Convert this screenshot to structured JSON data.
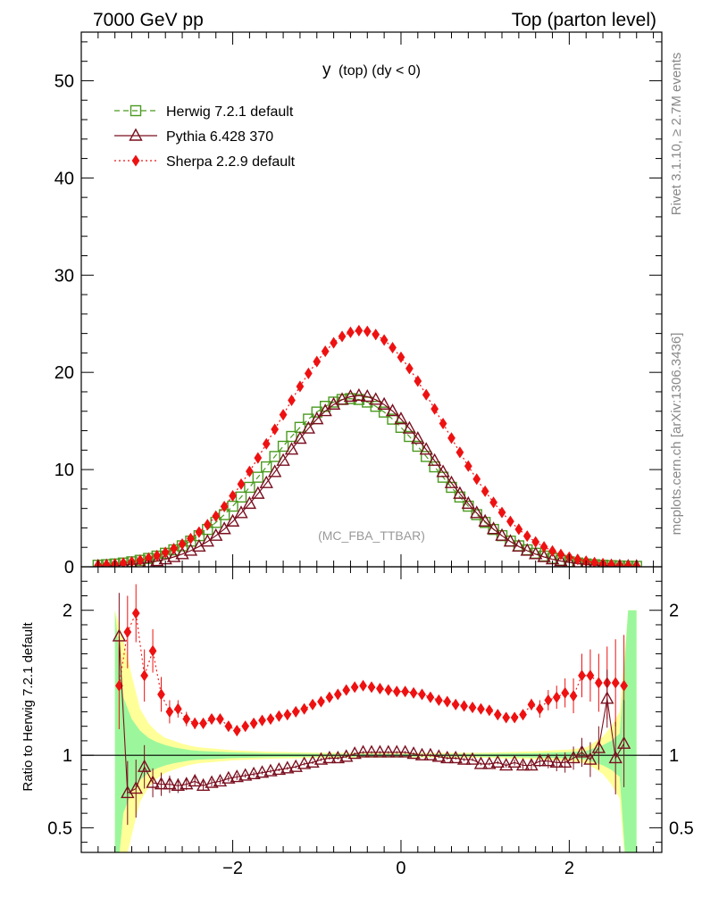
{
  "header": {
    "left": "7000 GeV pp",
    "right": "Top (parton level)"
  },
  "side": {
    "rivet": "Rivet 3.1.10, ≥ 2.7M events",
    "mcplots": "mcplots.cern.ch [arXiv:1306.3436]"
  },
  "chart_data": [
    {
      "type": "line",
      "panel": "main",
      "title_main": "y",
      "title_rest": "(top) (dy < 0)",
      "watermark": "(MC_FBA_TTBAR)",
      "xlim": [
        -3.8,
        3.1
      ],
      "ylim": [
        0,
        55
      ],
      "yticks": [
        0,
        10,
        20,
        30,
        40,
        50
      ],
      "ytick_labels": [
        "0",
        "10",
        "20",
        "30",
        "40",
        "50"
      ],
      "legend_position": "top-left",
      "sherpa_offset": -0.48,
      "pythia_offset": -0.5,
      "series": [
        {
          "name": "Herwig 7.2.1 default",
          "color": "#4a9a1f",
          "style": "dashed",
          "marker": "square",
          "curve": "gauss",
          "peak": 17.3,
          "mean": -0.6,
          "sigma": 0.98,
          "x_start": -3.6,
          "x_end": 2.8,
          "bin_width": 0.1
        },
        {
          "name": "Pythia 6.428 370",
          "color": "#7a0f1f",
          "style": "solid",
          "marker": "triangle",
          "curve": "gauss",
          "peak": 17.6,
          "mean": -0.5,
          "sigma": 0.92,
          "x_start": -3.6,
          "x_end": 2.8,
          "bin_width": 0.1
        },
        {
          "name": "Sherpa 2.2.9 default",
          "color": "#ee1111",
          "style": "dotted",
          "marker": "diamond",
          "curve": "gauss",
          "peak": 24.3,
          "mean": -0.5,
          "sigma": 0.98,
          "x_start": -3.6,
          "x_end": 2.8,
          "bin_width": 0.1
        }
      ]
    },
    {
      "type": "line",
      "panel": "ratio",
      "ylabel": "Ratio to Herwig 7.2.1 default",
      "xlim": [
        -3.8,
        3.1
      ],
      "ylim": [
        0.33,
        2.3
      ],
      "yticks": [
        0.5,
        1,
        2
      ],
      "ytick_labels": [
        "0.5",
        "1",
        "2"
      ],
      "xticks": [
        -2,
        0,
        2
      ],
      "xtick_labels": [
        "−2",
        "0",
        "2"
      ],
      "reference_line": 1,
      "bands": {
        "green": "#9cf79c",
        "yellow": "#ffff99",
        "x": [
          -3.4,
          -3.3,
          -3.2,
          -3.1,
          -3.0,
          -2.9,
          -2.8,
          -2.7,
          -2.6,
          -2.5,
          -2.4,
          -2.2,
          -2.0,
          -1.6,
          -1.0,
          0.0,
          1.0,
          1.6,
          2.0,
          2.2,
          2.3,
          2.4,
          2.5,
          2.6,
          2.7,
          2.8
        ],
        "green_half": [
          1.0,
          0.4,
          0.25,
          0.17,
          0.12,
          0.09,
          0.07,
          0.055,
          0.045,
          0.035,
          0.03,
          0.025,
          0.02,
          0.014,
          0.01,
          0.008,
          0.01,
          0.015,
          0.022,
          0.03,
          0.05,
          0.07,
          0.1,
          0.15,
          1.0,
          1.0
        ],
        "yellow_half": [
          1.0,
          0.8,
          0.55,
          0.32,
          0.22,
          0.16,
          0.12,
          0.1,
          0.08,
          0.065,
          0.055,
          0.045,
          0.035,
          0.025,
          0.018,
          0.015,
          0.018,
          0.028,
          0.04,
          0.055,
          0.09,
          0.13,
          0.2,
          0.3,
          1.0,
          1.0
        ]
      },
      "series": [
        {
          "name": "Sherpa 2.2.9 default / Herwig",
          "color": "#ee1111",
          "marker": "diamond",
          "x": [
            -3.35,
            -3.25,
            -3.15,
            -3.05,
            -2.95,
            -2.85,
            -2.75,
            -2.65,
            -2.55,
            -2.45,
            -2.35,
            -2.25,
            -2.15,
            -2.05,
            -1.95,
            -1.85,
            -1.75,
            -1.65,
            -1.55,
            -1.45,
            -1.35,
            -1.25,
            -1.15,
            -1.05,
            -0.95,
            -0.85,
            -0.75,
            -0.65,
            -0.55,
            -0.45,
            -0.35,
            -0.25,
            -0.15,
            -0.05,
            0.05,
            0.15,
            0.25,
            0.35,
            0.45,
            0.55,
            0.65,
            0.75,
            0.85,
            0.95,
            1.05,
            1.15,
            1.25,
            1.35,
            1.45,
            1.55,
            1.65,
            1.75,
            1.85,
            1.95,
            2.05,
            2.15,
            2.25,
            2.35,
            2.45,
            2.55,
            2.65
          ],
          "y": [
            1.48,
            1.85,
            1.98,
            1.55,
            1.72,
            1.42,
            1.3,
            1.32,
            1.25,
            1.22,
            1.22,
            1.25,
            1.25,
            1.2,
            1.17,
            1.2,
            1.22,
            1.24,
            1.25,
            1.27,
            1.28,
            1.3,
            1.32,
            1.35,
            1.37,
            1.4,
            1.42,
            1.45,
            1.47,
            1.48,
            1.47,
            1.46,
            1.45,
            1.44,
            1.44,
            1.43,
            1.42,
            1.4,
            1.38,
            1.37,
            1.35,
            1.34,
            1.33,
            1.32,
            1.31,
            1.28,
            1.26,
            1.26,
            1.28,
            1.35,
            1.32,
            1.38,
            1.4,
            1.43,
            1.41,
            1.55,
            1.55,
            1.5,
            1.5,
            1.5,
            1.48
          ],
          "err": [
            0.3,
            0.25,
            0.2,
            0.18,
            0.15,
            0.12,
            0.08,
            0.06,
            0.05,
            0.04,
            0.03,
            0.025,
            0.02,
            0.02,
            0.02,
            0.015,
            0.015,
            0.012,
            0.012,
            0.01,
            0.01,
            0.01,
            0.01,
            0.01,
            0.01,
            0.01,
            0.01,
            0.01,
            0.01,
            0.01,
            0.01,
            0.01,
            0.01,
            0.01,
            0.01,
            0.01,
            0.01,
            0.01,
            0.01,
            0.01,
            0.01,
            0.01,
            0.01,
            0.01,
            0.01,
            0.012,
            0.015,
            0.02,
            0.03,
            0.04,
            0.06,
            0.07,
            0.08,
            0.1,
            0.12,
            0.15,
            0.18,
            0.2,
            0.25,
            0.3,
            0.35
          ]
        },
        {
          "name": "Pythia 6.428 370 / Herwig",
          "color": "#7a0f1f",
          "marker": "triangle",
          "x": [
            -3.35,
            -3.25,
            -3.15,
            -3.05,
            -2.95,
            -2.85,
            -2.75,
            -2.65,
            -2.55,
            -2.45,
            -2.35,
            -2.25,
            -2.15,
            -2.05,
            -1.95,
            -1.85,
            -1.75,
            -1.65,
            -1.55,
            -1.45,
            -1.35,
            -1.25,
            -1.15,
            -1.05,
            -0.95,
            -0.85,
            -0.75,
            -0.65,
            -0.55,
            -0.45,
            -0.35,
            -0.25,
            -0.15,
            -0.05,
            0.05,
            0.15,
            0.25,
            0.35,
            0.45,
            0.55,
            0.65,
            0.75,
            0.85,
            0.95,
            1.05,
            1.15,
            1.25,
            1.35,
            1.45,
            1.55,
            1.65,
            1.75,
            1.85,
            1.95,
            2.05,
            2.15,
            2.25,
            2.35,
            2.45,
            2.55,
            2.65
          ],
          "y": [
            1.82,
            0.74,
            0.77,
            0.92,
            0.81,
            0.8,
            0.8,
            0.79,
            0.8,
            0.82,
            0.79,
            0.81,
            0.82,
            0.84,
            0.85,
            0.86,
            0.87,
            0.88,
            0.89,
            0.9,
            0.91,
            0.92,
            0.94,
            0.95,
            0.97,
            0.98,
            0.98,
            0.99,
            1.01,
            1.02,
            1.02,
            1.02,
            1.02,
            1.02,
            1.02,
            1.01,
            1.0,
            1.0,
            0.99,
            0.98,
            0.98,
            0.97,
            0.97,
            0.94,
            0.94,
            0.95,
            0.93,
            0.95,
            0.93,
            0.93,
            0.96,
            0.96,
            0.95,
            0.95,
            0.98,
            1.02,
            0.97,
            1.05,
            1.39,
            0.98,
            1.08
          ],
          "err": [
            0.3,
            0.22,
            0.2,
            0.15,
            0.1,
            0.08,
            0.06,
            0.05,
            0.04,
            0.035,
            0.03,
            0.025,
            0.02,
            0.02,
            0.02,
            0.015,
            0.015,
            0.012,
            0.012,
            0.01,
            0.01,
            0.01,
            0.01,
            0.01,
            0.01,
            0.01,
            0.01,
            0.01,
            0.01,
            0.01,
            0.01,
            0.01,
            0.01,
            0.01,
            0.01,
            0.01,
            0.01,
            0.01,
            0.01,
            0.01,
            0.01,
            0.01,
            0.01,
            0.01,
            0.01,
            0.012,
            0.015,
            0.02,
            0.025,
            0.03,
            0.04,
            0.05,
            0.06,
            0.07,
            0.08,
            0.1,
            0.12,
            0.15,
            0.2,
            0.25,
            0.3
          ]
        }
      ]
    }
  ]
}
